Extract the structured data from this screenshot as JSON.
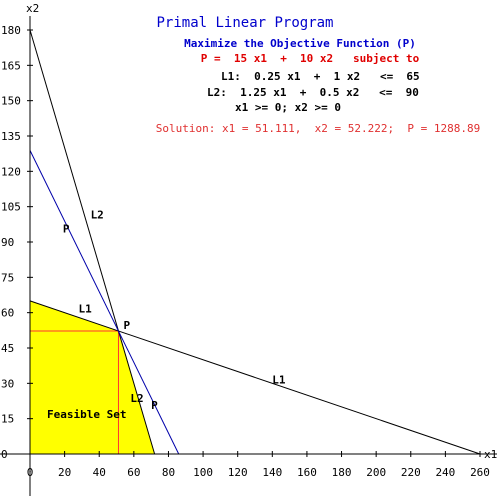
{
  "chart_data": {
    "type": "line",
    "title": "Primal Linear Program",
    "subtitle": "Maximize the Objective Function (P)",
    "objective_text": "P =  15 x1  +  10 x2   subject to",
    "constraint_lines": [
      "L1:  0.25 x1  +  1 x2   <=  65",
      "L2:  1.25 x1  +  0.5 x2   <=  90",
      "x1 >= 0; x2 >= 0"
    ],
    "solution_text": "Solution: x1 = 51.111,  x2 = 52.222;  P = 1288.89",
    "xlabel": "x1",
    "ylabel": "x2",
    "xlim": [
      0,
      260
    ],
    "ylim": [
      0,
      180
    ],
    "x_ticks": [
      0,
      20,
      40,
      60,
      80,
      100,
      120,
      140,
      160,
      180,
      200,
      220,
      240,
      260
    ],
    "y_ticks": [
      0,
      15,
      30,
      45,
      60,
      75,
      90,
      105,
      120,
      135,
      150,
      165,
      180
    ],
    "series": [
      {
        "name": "L1",
        "color": "#000000",
        "points": [
          [
            0,
            65
          ],
          [
            260,
            0
          ]
        ]
      },
      {
        "name": "L2",
        "color": "#000000",
        "points": [
          [
            0,
            180
          ],
          [
            72,
            0
          ]
        ]
      },
      {
        "name": "P",
        "color": "#0000aa",
        "points": [
          [
            0,
            128.889
          ],
          [
            85.926,
            0
          ]
        ]
      }
    ],
    "feasible_region": {
      "label": "Feasible Set",
      "color": "#ffff00",
      "vertices": [
        [
          0,
          0
        ],
        [
          0,
          65
        ],
        [
          51.111,
          52.222
        ],
        [
          72,
          0
        ]
      ]
    },
    "solution_guides_color": "#ff3333",
    "solution_point": {
      "label": "P",
      "x": 51.111,
      "y": 52.222
    },
    "line_labels": [
      {
        "text": "L1",
        "x": 28,
        "y": 60
      },
      {
        "text": "L1",
        "x": 140,
        "y": 30
      },
      {
        "text": "L2",
        "x": 35,
        "y": 100
      },
      {
        "text": "L2",
        "x": 58,
        "y": 22
      },
      {
        "text": "P",
        "x": 19,
        "y": 94
      },
      {
        "text": "P",
        "x": 70,
        "y": 19
      }
    ]
  }
}
